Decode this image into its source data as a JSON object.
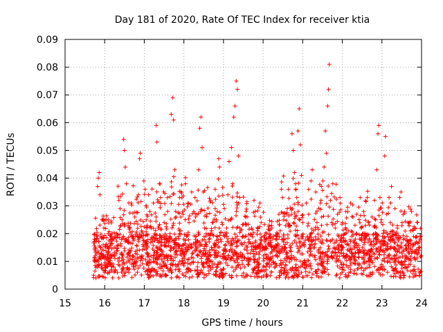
{
  "chart_data": {
    "type": "scatter",
    "title": "Day 181 of 2020, Rate Of TEC Index for receiver ktia",
    "xlabel": "GPS time / hours",
    "ylabel": "ROTI / TECUs",
    "xlim": [
      15,
      24
    ],
    "ylim": [
      0,
      0.09
    ],
    "xticks": [
      "15",
      "16",
      "17",
      "18",
      "19",
      "20",
      "21",
      "22",
      "23",
      "24"
    ],
    "yticks": [
      "0",
      "0.01",
      "0.02",
      "0.03",
      "0.04",
      "0.05",
      "0.06",
      "0.07",
      "0.08",
      "0.09"
    ],
    "grid": true,
    "marker": "plus",
    "color": "#ff0000",
    "series": [
      {
        "name": "ROTI",
        "points": [
          [
            15.72,
            0.005
          ],
          [
            15.74,
            0.018
          ],
          [
            15.76,
            0.012
          ],
          [
            15.78,
            0.004
          ],
          [
            15.8,
            0.01
          ],
          [
            15.82,
            0.037
          ],
          [
            15.84,
            0.04
          ],
          [
            15.86,
            0.042
          ],
          [
            15.88,
            0.034
          ],
          [
            15.9,
            0.015
          ],
          [
            15.92,
            0.009
          ],
          [
            15.95,
            0.025
          ],
          [
            15.98,
            0.022
          ],
          [
            16.0,
            0.011
          ],
          [
            16.03,
            0.016
          ],
          [
            16.06,
            0.008
          ],
          [
            16.09,
            0.013
          ],
          [
            16.12,
            0.006
          ],
          [
            16.15,
            0.018
          ],
          [
            16.18,
            0.012
          ],
          [
            16.21,
            0.009
          ],
          [
            16.24,
            0.015
          ],
          [
            16.27,
            0.007
          ],
          [
            16.3,
            0.02
          ],
          [
            16.33,
            0.011
          ],
          [
            16.36,
            0.032
          ],
          [
            16.39,
            0.029
          ],
          [
            16.42,
            0.013
          ],
          [
            16.45,
            0.009
          ],
          [
            16.48,
            0.054
          ],
          [
            16.5,
            0.05
          ],
          [
            16.52,
            0.044
          ],
          [
            16.55,
            0.038
          ],
          [
            16.58,
            0.017
          ],
          [
            16.61,
            0.006
          ],
          [
            16.64,
            0.022
          ],
          [
            16.67,
            0.031
          ],
          [
            16.7,
            0.012
          ],
          [
            16.73,
            0.018
          ],
          [
            16.76,
            0.026
          ],
          [
            16.79,
            0.009
          ],
          [
            16.82,
            0.014
          ],
          [
            16.85,
            0.034
          ],
          [
            16.88,
            0.047
          ],
          [
            16.9,
            0.049
          ],
          [
            16.93,
            0.021
          ],
          [
            16.96,
            0.011
          ],
          [
            16.99,
            0.039
          ],
          [
            17.02,
            0.036
          ],
          [
            17.05,
            0.025
          ],
          [
            17.08,
            0.015
          ],
          [
            17.11,
            0.034
          ],
          [
            17.14,
            0.028
          ],
          [
            17.17,
            0.012
          ],
          [
            17.2,
            0.018
          ],
          [
            17.23,
            0.031
          ],
          [
            17.26,
            0.007
          ],
          [
            17.3,
            0.059
          ],
          [
            17.32,
            0.053
          ],
          [
            17.35,
            0.022
          ],
          [
            17.38,
            0.038
          ],
          [
            17.41,
            0.033
          ],
          [
            17.44,
            0.014
          ],
          [
            17.47,
            0.01
          ],
          [
            17.5,
            0.024
          ],
          [
            17.53,
            0.009
          ],
          [
            17.56,
            0.017
          ],
          [
            17.59,
            0.028
          ],
          [
            17.62,
            0.012
          ],
          [
            17.65,
            0.02
          ],
          [
            17.68,
            0.063
          ],
          [
            17.72,
            0.069
          ],
          [
            17.74,
            0.061
          ],
          [
            17.77,
            0.043
          ],
          [
            17.8,
            0.026
          ],
          [
            17.83,
            0.016
          ],
          [
            17.86,
            0.009
          ],
          [
            17.89,
            0.033
          ],
          [
            17.92,
            0.021
          ],
          [
            17.95,
            0.014
          ],
          [
            17.98,
            0.027
          ],
          [
            18.01,
            0.011
          ],
          [
            18.04,
            0.038
          ],
          [
            18.07,
            0.019
          ],
          [
            18.1,
            0.031
          ],
          [
            18.13,
            0.024
          ],
          [
            18.16,
            0.009
          ],
          [
            18.19,
            0.016
          ],
          [
            18.22,
            0.013
          ],
          [
            18.25,
            0.028
          ],
          [
            18.28,
            0.033
          ],
          [
            18.31,
            0.019
          ],
          [
            18.34,
            0.008
          ],
          [
            18.37,
            0.043
          ],
          [
            18.4,
            0.058
          ],
          [
            18.43,
            0.062
          ],
          [
            18.46,
            0.051
          ],
          [
            18.49,
            0.035
          ],
          [
            18.52,
            0.022
          ],
          [
            18.55,
            0.013
          ],
          [
            18.58,
            0.027
          ],
          [
            18.61,
            0.011
          ],
          [
            18.64,
            0.017
          ],
          [
            18.67,
            0.032
          ],
          [
            18.7,
            0.021
          ],
          [
            18.73,
            0.009
          ],
          [
            18.76,
            0.015
          ],
          [
            18.79,
            0.036
          ],
          [
            18.82,
            0.025
          ],
          [
            18.85,
            0.012
          ],
          [
            18.88,
            0.047
          ],
          [
            18.9,
            0.044
          ],
          [
            18.93,
            0.018
          ],
          [
            18.96,
            0.024
          ],
          [
            18.99,
            0.011
          ],
          [
            19.02,
            0.029
          ],
          [
            19.05,
            0.016
          ],
          [
            19.08,
            0.022
          ],
          [
            19.11,
            0.034
          ],
          [
            19.14,
            0.046
          ],
          [
            19.17,
            0.025
          ],
          [
            19.2,
            0.051
          ],
          [
            19.23,
            0.038
          ],
          [
            19.26,
            0.062
          ],
          [
            19.29,
            0.066
          ],
          [
            19.32,
            0.075
          ],
          [
            19.35,
            0.072
          ],
          [
            19.38,
            0.048
          ],
          [
            19.41,
            0.033
          ],
          [
            19.44,
            0.021
          ],
          [
            19.47,
            0.012
          ],
          [
            19.5,
            0.019
          ],
          [
            19.53,
            0.008
          ],
          [
            19.56,
            0.026
          ],
          [
            19.59,
            0.014
          ],
          [
            19.62,
            0.009
          ],
          [
            19.65,
            0.017
          ],
          [
            19.68,
            0.011
          ],
          [
            19.71,
            0.022
          ],
          [
            19.74,
            0.006
          ],
          [
            19.77,
            0.032
          ],
          [
            19.8,
            0.028
          ],
          [
            19.83,
            0.013
          ],
          [
            19.86,
            0.021
          ],
          [
            19.89,
            0.009
          ],
          [
            19.92,
            0.031
          ],
          [
            19.95,
            0.024
          ],
          [
            19.98,
            0.014
          ],
          [
            20.01,
            0.012
          ],
          [
            20.04,
            0.018
          ],
          [
            20.07,
            0.007
          ],
          [
            20.1,
            0.011
          ],
          [
            20.13,
            0.016
          ],
          [
            20.16,
            0.008
          ],
          [
            20.19,
            0.013
          ],
          [
            20.22,
            0.022
          ],
          [
            20.25,
            0.01
          ],
          [
            20.28,
            0.015
          ],
          [
            20.31,
            0.009
          ],
          [
            20.34,
            0.019
          ],
          [
            20.37,
            0.012
          ],
          [
            20.4,
            0.027
          ],
          [
            20.43,
            0.021
          ],
          [
            20.46,
            0.014
          ],
          [
            20.49,
            0.033
          ],
          [
            20.52,
            0.025
          ],
          [
            20.55,
            0.018
          ],
          [
            20.58,
            0.011
          ],
          [
            20.61,
            0.029
          ],
          [
            20.64,
            0.036
          ],
          [
            20.67,
            0.023
          ],
          [
            20.7,
            0.015
          ],
          [
            20.73,
            0.056
          ],
          [
            20.76,
            0.05
          ],
          [
            20.79,
            0.042
          ],
          [
            20.82,
            0.038
          ],
          [
            20.85,
            0.033
          ],
          [
            20.88,
            0.057
          ],
          [
            20.91,
            0.065
          ],
          [
            20.94,
            0.052
          ],
          [
            20.97,
            0.041
          ],
          [
            21.0,
            0.024
          ],
          [
            21.03,
            0.016
          ],
          [
            21.06,
            0.009
          ],
          [
            21.09,
            0.031
          ],
          [
            21.12,
            0.019
          ],
          [
            21.15,
            0.027
          ],
          [
            21.18,
            0.012
          ],
          [
            21.21,
            0.039
          ],
          [
            21.24,
            0.043
          ],
          [
            21.27,
            0.021
          ],
          [
            21.3,
            0.015
          ],
          [
            21.33,
            0.035
          ],
          [
            21.36,
            0.024
          ],
          [
            21.39,
            0.018
          ],
          [
            21.42,
            0.011
          ],
          [
            21.45,
            0.031
          ],
          [
            21.48,
            0.026
          ],
          [
            21.51,
            0.039
          ],
          [
            21.54,
            0.044
          ],
          [
            21.57,
            0.057
          ],
          [
            21.6,
            0.049
          ],
          [
            21.63,
            0.066
          ],
          [
            21.65,
            0.072
          ],
          [
            21.67,
            0.081
          ],
          [
            21.7,
            0.032
          ],
          [
            21.73,
            0.024
          ],
          [
            21.76,
            0.038
          ],
          [
            21.79,
            0.015
          ],
          [
            21.82,
            0.022
          ],
          [
            21.85,
            0.011
          ],
          [
            21.88,
            0.027
          ],
          [
            21.91,
            0.019
          ],
          [
            21.94,
            0.033
          ],
          [
            21.97,
            0.013
          ],
          [
            22.0,
            0.024
          ],
          [
            22.03,
            0.009
          ],
          [
            22.06,
            0.017
          ],
          [
            22.09,
            0.028
          ],
          [
            22.12,
            0.012
          ],
          [
            22.15,
            0.021
          ],
          [
            22.18,
            0.014
          ],
          [
            22.21,
            0.031
          ],
          [
            22.24,
            0.019
          ],
          [
            22.27,
            0.026
          ],
          [
            22.3,
            0.011
          ],
          [
            22.33,
            0.018
          ],
          [
            22.36,
            0.027
          ],
          [
            22.39,
            0.014
          ],
          [
            22.42,
            0.009
          ],
          [
            22.45,
            0.033
          ],
          [
            22.48,
            0.022
          ],
          [
            22.51,
            0.015
          ],
          [
            22.54,
            0.028
          ],
          [
            22.57,
            0.012
          ],
          [
            22.6,
            0.019
          ],
          [
            22.63,
            0.033
          ],
          [
            22.66,
            0.024
          ],
          [
            22.69,
            0.011
          ],
          [
            22.72,
            0.017
          ],
          [
            22.75,
            0.026
          ],
          [
            22.78,
            0.013
          ],
          [
            22.81,
            0.032
          ],
          [
            22.84,
            0.025
          ],
          [
            22.87,
            0.043
          ],
          [
            22.9,
            0.056
          ],
          [
            22.92,
            0.059
          ],
          [
            22.95,
            0.033
          ],
          [
            22.98,
            0.025
          ],
          [
            23.01,
            0.019
          ],
          [
            23.04,
            0.014
          ],
          [
            23.07,
            0.048
          ],
          [
            23.09,
            0.055
          ],
          [
            23.12,
            0.027
          ],
          [
            23.15,
            0.019
          ],
          [
            23.18,
            0.033
          ],
          [
            23.21,
            0.024
          ],
          [
            23.24,
            0.037
          ],
          [
            23.27,
            0.021
          ],
          [
            23.3,
            0.015
          ],
          [
            23.33,
            0.029
          ],
          [
            23.36,
            0.011
          ],
          [
            23.39,
            0.022
          ],
          [
            23.42,
            0.018
          ],
          [
            23.45,
            0.033
          ],
          [
            23.48,
            0.035
          ],
          [
            23.51,
            0.024
          ],
          [
            23.54,
            0.014
          ],
          [
            23.57,
            0.028
          ],
          [
            23.6,
            0.011
          ],
          [
            23.63,
            0.019
          ],
          [
            23.66,
            0.024
          ],
          [
            23.69,
            0.013
          ],
          [
            23.72,
            0.021
          ],
          [
            23.75,
            0.028
          ],
          [
            23.78,
            0.016
          ],
          [
            23.81,
            0.011
          ],
          [
            23.84,
            0.022
          ],
          [
            23.87,
            0.017
          ],
          [
            23.9,
            0.024
          ],
          [
            23.93,
            0.014
          ],
          [
            23.96,
            0.019
          ],
          [
            23.99,
            0.012
          ]
        ]
      }
    ]
  }
}
